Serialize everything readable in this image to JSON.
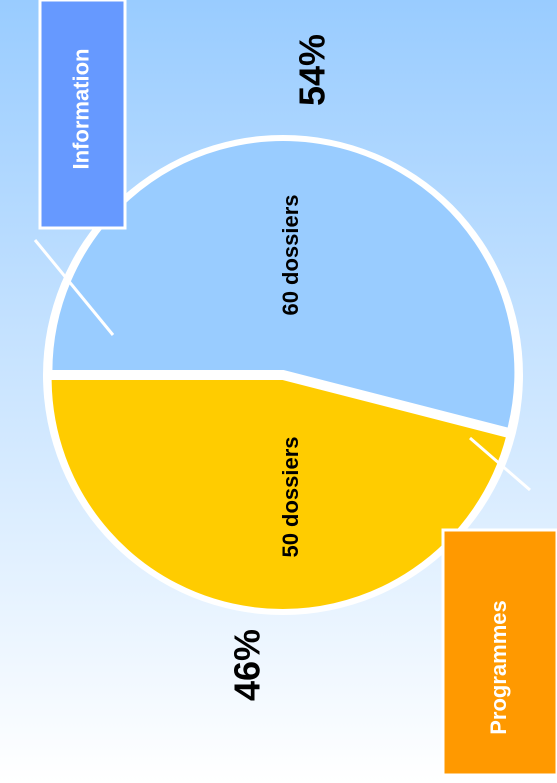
{
  "chart_data": {
    "type": "pie",
    "categories": [
      "Information",
      "Programmes"
    ],
    "values": [
      54,
      46
    ],
    "value_labels": [
      "54%",
      "46%"
    ],
    "counts": [
      60,
      50
    ],
    "count_labels": [
      "60 dossiers",
      "50 dossiers"
    ],
    "colors": [
      "#99ccff",
      "#ffcc00"
    ],
    "legend_colors": [
      "#6699ff",
      "#ff9900"
    ]
  }
}
